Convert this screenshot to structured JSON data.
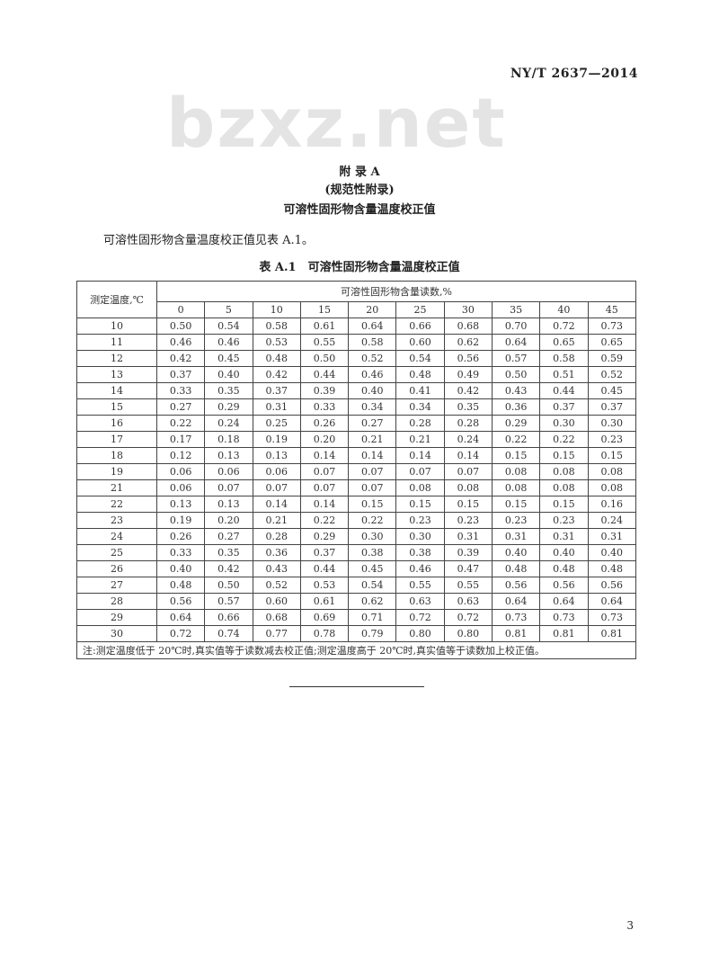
{
  "header": {
    "standard_code": "NY/T 2637—2014"
  },
  "watermark": "bzxz.net",
  "appendix": {
    "label": "附 录 A",
    "type": "(规范性附录)",
    "title": "可溶性固形物含量温度校正值"
  },
  "intro": "可溶性固形物含量温度校正值见表 A.1。",
  "table": {
    "title": "表 A.1　可溶性固形物含量温度校正值",
    "row_header": "测定温度,℃",
    "col_group_header": "可溶性固形物含量读数,%",
    "columns": [
      "0",
      "5",
      "10",
      "15",
      "20",
      "25",
      "30",
      "35",
      "40",
      "45"
    ],
    "rows": [
      {
        "t": "10",
        "v": [
          "0.50",
          "0.54",
          "0.58",
          "0.61",
          "0.64",
          "0.66",
          "0.68",
          "0.70",
          "0.72",
          "0.73"
        ]
      },
      {
        "t": "11",
        "v": [
          "0.46",
          "0.46",
          "0.53",
          "0.55",
          "0.58",
          "0.60",
          "0.62",
          "0.64",
          "0.65",
          "0.65"
        ]
      },
      {
        "t": "12",
        "v": [
          "0.42",
          "0.45",
          "0.48",
          "0.50",
          "0.52",
          "0.54",
          "0.56",
          "0.57",
          "0.58",
          "0.59"
        ]
      },
      {
        "t": "13",
        "v": [
          "0.37",
          "0.40",
          "0.42",
          "0.44",
          "0.46",
          "0.48",
          "0.49",
          "0.50",
          "0.51",
          "0.52"
        ]
      },
      {
        "t": "14",
        "v": [
          "0.33",
          "0.35",
          "0.37",
          "0.39",
          "0.40",
          "0.41",
          "0.42",
          "0.43",
          "0.44",
          "0.45"
        ]
      },
      {
        "t": "15",
        "v": [
          "0.27",
          "0.29",
          "0.31",
          "0.33",
          "0.34",
          "0.34",
          "0.35",
          "0.36",
          "0.37",
          "0.37"
        ]
      },
      {
        "t": "16",
        "v": [
          "0.22",
          "0.24",
          "0.25",
          "0.26",
          "0.27",
          "0.28",
          "0.28",
          "0.29",
          "0.30",
          "0.30"
        ]
      },
      {
        "t": "17",
        "v": [
          "0.17",
          "0.18",
          "0.19",
          "0.20",
          "0.21",
          "0.21",
          "0.24",
          "0.22",
          "0.22",
          "0.23"
        ]
      },
      {
        "t": "18",
        "v": [
          "0.12",
          "0.13",
          "0.13",
          "0.14",
          "0.14",
          "0.14",
          "0.14",
          "0.15",
          "0.15",
          "0.15"
        ]
      },
      {
        "t": "19",
        "v": [
          "0.06",
          "0.06",
          "0.06",
          "0.07",
          "0.07",
          "0.07",
          "0.07",
          "0.08",
          "0.08",
          "0.08"
        ]
      },
      {
        "t": "21",
        "v": [
          "0.06",
          "0.07",
          "0.07",
          "0.07",
          "0.07",
          "0.08",
          "0.08",
          "0.08",
          "0.08",
          "0.08"
        ]
      },
      {
        "t": "22",
        "v": [
          "0.13",
          "0.13",
          "0.14",
          "0.14",
          "0.15",
          "0.15",
          "0.15",
          "0.15",
          "0.15",
          "0.16"
        ]
      },
      {
        "t": "23",
        "v": [
          "0.19",
          "0.20",
          "0.21",
          "0.22",
          "0.22",
          "0.23",
          "0.23",
          "0.23",
          "0.23",
          "0.24"
        ]
      },
      {
        "t": "24",
        "v": [
          "0.26",
          "0.27",
          "0.28",
          "0.29",
          "0.30",
          "0.30",
          "0.31",
          "0.31",
          "0.31",
          "0.31"
        ]
      },
      {
        "t": "25",
        "v": [
          "0.33",
          "0.35",
          "0.36",
          "0.37",
          "0.38",
          "0.38",
          "0.39",
          "0.40",
          "0.40",
          "0.40"
        ]
      },
      {
        "t": "26",
        "v": [
          "0.40",
          "0.42",
          "0.43",
          "0.44",
          "0.45",
          "0.46",
          "0.47",
          "0.48",
          "0.48",
          "0.48"
        ]
      },
      {
        "t": "27",
        "v": [
          "0.48",
          "0.50",
          "0.52",
          "0.53",
          "0.54",
          "0.55",
          "0.55",
          "0.56",
          "0.56",
          "0.56"
        ]
      },
      {
        "t": "28",
        "v": [
          "0.56",
          "0.57",
          "0.60",
          "0.61",
          "0.62",
          "0.63",
          "0.63",
          "0.64",
          "0.64",
          "0.64"
        ]
      },
      {
        "t": "29",
        "v": [
          "0.64",
          "0.66",
          "0.68",
          "0.69",
          "0.71",
          "0.72",
          "0.72",
          "0.73",
          "0.73",
          "0.73"
        ]
      },
      {
        "t": "30",
        "v": [
          "0.72",
          "0.74",
          "0.77",
          "0.78",
          "0.79",
          "0.80",
          "0.80",
          "0.81",
          "0.81",
          "0.81"
        ]
      }
    ],
    "note": "注:测定温度低于 20℃时,真实值等于读数减去校正值;测定温度高于 20℃时,真实值等于读数加上校正值。"
  },
  "page_number": "3"
}
